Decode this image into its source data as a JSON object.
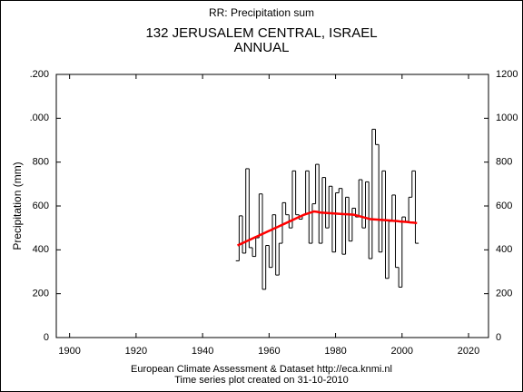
{
  "chart_data": {
    "type": "step",
    "subtitle": "RR: Precipitation sum",
    "title": "132 JERUSALEM CENTRAL, ISRAEL",
    "period": "ANNUAL",
    "ylabel": "Precipitation (mm)",
    "footer": [
      "European Climate Assessment & Dataset  http://eca.knmi.nl",
      "Time series plot created on 31-10-2010"
    ],
    "xlim": [
      1896,
      2026
    ],
    "xticks": [
      1900,
      1920,
      1940,
      1960,
      1980,
      2000,
      2020
    ],
    "ylim": [
      0,
      1200
    ],
    "yticks": [
      0,
      200,
      400,
      600,
      800,
      {
        "value": 1000,
        "label": ".000"
      },
      {
        "value": 1200,
        "label": ".200"
      }
    ],
    "y2lim": [
      0,
      1200
    ],
    "y2ticks": [
      0,
      200,
      400,
      600,
      800,
      1000,
      1200
    ],
    "x": [
      1950,
      1951,
      1952,
      1953,
      1954,
      1955,
      1956,
      1957,
      1958,
      1959,
      1960,
      1961,
      1962,
      1963,
      1964,
      1965,
      1966,
      1967,
      1968,
      1969,
      1970,
      1971,
      1972,
      1973,
      1974,
      1975,
      1976,
      1977,
      1978,
      1979,
      1980,
      1981,
      1982,
      1983,
      1984,
      1985,
      1986,
      1987,
      1988,
      1989,
      1990,
      1991,
      1992,
      1993,
      1994,
      1995,
      1996,
      1997,
      1998,
      1999,
      2000,
      2001,
      2002,
      2003,
      2004
    ],
    "series": [
      {
        "color": "#000000",
        "values": [
          350,
          555,
          385,
          770,
          410,
          370,
          455,
          655,
          220,
          420,
          320,
          560,
          285,
          430,
          615,
          560,
          500,
          760,
          560,
          540,
          560,
          760,
          430,
          610,
          790,
          430,
          730,
          500,
          690,
          390,
          660,
          680,
          380,
          640,
          440,
          590,
          550,
          720,
          500,
          710,
          360,
          950,
          880,
          390,
          760,
          270,
          530,
          650,
          320,
          230,
          550,
          530,
          640,
          760,
          430
        ]
      },
      {
        "color": "#ff0000",
        "values": [
          420,
          427,
          434,
          441,
          448,
          455,
          462,
          469,
          476,
          483,
          490,
          497,
          504,
          511,
          518,
          525,
          532,
          539,
          546,
          553,
          560,
          565,
          570,
          575,
          573,
          570,
          569,
          568,
          567,
          566,
          565,
          564,
          563,
          562,
          561,
          560,
          556,
          552,
          548,
          544,
          540,
          539,
          538,
          537,
          536,
          535,
          534,
          532,
          531,
          529,
          528,
          527,
          525,
          524,
          522
        ]
      }
    ]
  }
}
